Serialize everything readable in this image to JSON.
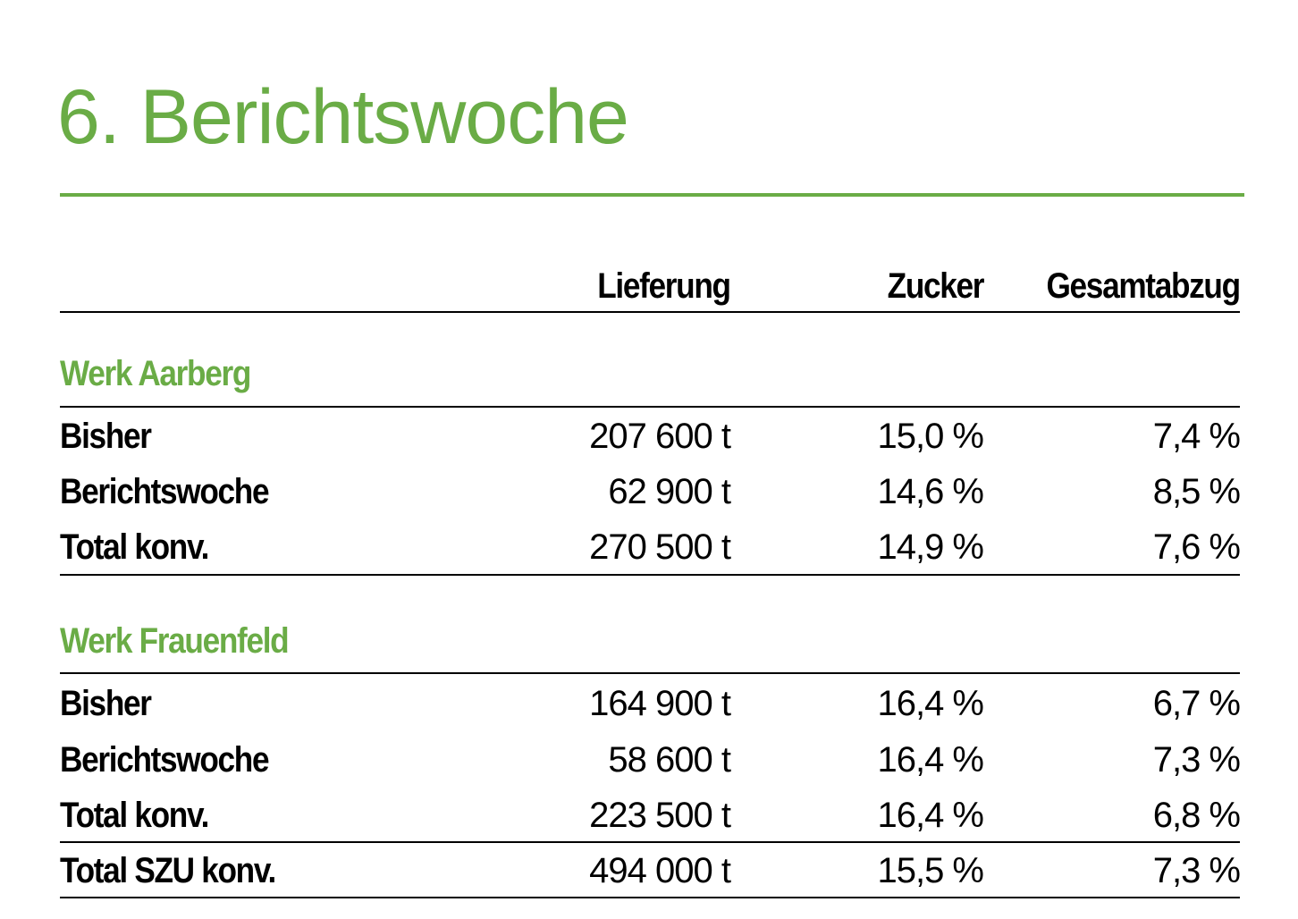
{
  "title": "6. Berichtswoche",
  "accent_color": "#6aac46",
  "columns": [
    "Lieferung",
    "Zucker",
    "Gesamtabzug"
  ],
  "sections": [
    {
      "name": "Werk Aarberg",
      "rows": [
        {
          "label": "Bisher",
          "lieferung": "207 600 t",
          "zucker": "15,0 %",
          "gesamtabzug": "7,4 %"
        },
        {
          "label": "Berichtswoche",
          "lieferung": "62 900 t",
          "zucker": "14,6 %",
          "gesamtabzug": "8,5 %"
        },
        {
          "label": "Total konv.",
          "lieferung": "270 500 t",
          "zucker": "14,9 %",
          "gesamtabzug": "7,6 %"
        }
      ]
    },
    {
      "name": "Werk Frauenfeld",
      "rows": [
        {
          "label": "Bisher",
          "lieferung": "164 900 t",
          "zucker": "16,4 %",
          "gesamtabzug": "6,7 %"
        },
        {
          "label": "Berichtswoche",
          "lieferung": "58 600 t",
          "zucker": "16,4 %",
          "gesamtabzug": "7,3 %"
        },
        {
          "label": "Total konv.",
          "lieferung": "223 500 t",
          "zucker": "16,4 %",
          "gesamtabzug": "6,8 %"
        }
      ]
    }
  ],
  "grand_total": {
    "label": "Total SZU konv.",
    "lieferung": "494 000 t",
    "zucker": "15,5 %",
    "gesamtabzug": "7,3 %"
  }
}
